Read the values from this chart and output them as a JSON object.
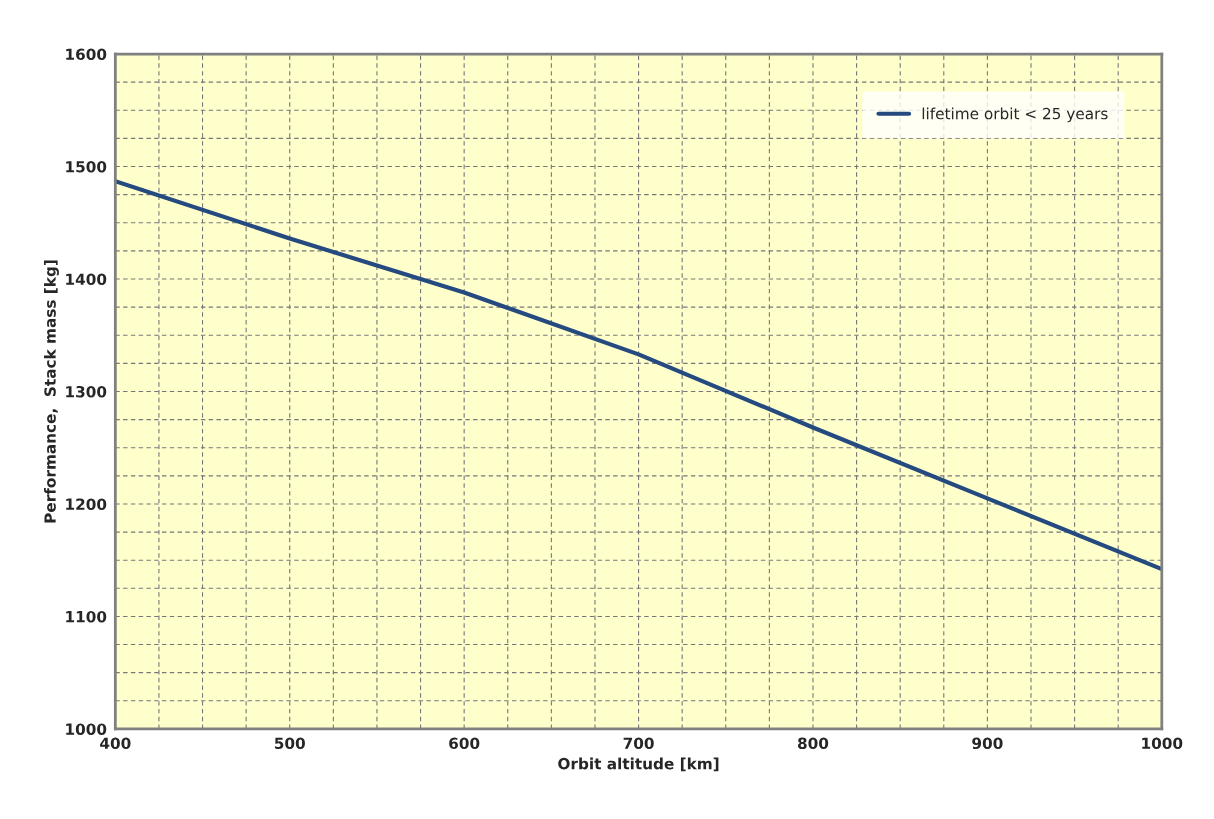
{
  "chart_data": {
    "type": "line",
    "xlabel": "Orbit altitude [km]",
    "ylabel": "Performance,  Stack mass [kg]",
    "x": [
      400,
      500,
      600,
      700,
      800,
      900,
      1000
    ],
    "series": [
      {
        "name": "lifetime orbit < 25 years",
        "color": "#254a80",
        "values": [
          1487,
          1436,
          1388,
          1333,
          1268,
          1205,
          1142
        ]
      }
    ],
    "xlim": [
      400,
      1000
    ],
    "ylim": [
      1000,
      1600
    ],
    "xticks": [
      400,
      {
        "value": 425,
        "label": null
      },
      {
        "value": 450,
        "label": null
      },
      {
        "value": 475,
        "label": null
      },
      500,
      {
        "value": 525,
        "label": null
      },
      {
        "value": 550,
        "label": null
      },
      {
        "value": 575,
        "label": null
      },
      600,
      {
        "value": 625,
        "label": null
      },
      {
        "value": 650,
        "label": null
      },
      {
        "value": 675,
        "label": null
      },
      700,
      {
        "value": 725,
        "label": null
      },
      {
        "value": 750,
        "label": null
      },
      {
        "value": 775,
        "label": null
      },
      800,
      {
        "value": 825,
        "label": null
      },
      {
        "value": 850,
        "label": null
      },
      {
        "value": 875,
        "label": null
      },
      900,
      {
        "value": 925,
        "label": null
      },
      {
        "value": 950,
        "label": null
      },
      {
        "value": 975,
        "label": null
      },
      1000
    ],
    "yticks": [
      1000,
      {
        "value": 1025,
        "label": null
      },
      {
        "value": 1050,
        "label": null
      },
      {
        "value": 1075,
        "label": null
      },
      1100,
      {
        "value": 1125,
        "label": null
      },
      {
        "value": 1150,
        "label": null
      },
      {
        "value": 1175,
        "label": null
      },
      1200,
      {
        "value": 1225,
        "label": null
      },
      {
        "value": 1250,
        "label": null
      },
      {
        "value": 1275,
        "label": null
      },
      1300,
      {
        "value": 1325,
        "label": null
      },
      {
        "value": 1350,
        "label": null
      },
      {
        "value": 1375,
        "label": null
      },
      1400,
      {
        "value": 1425,
        "label": null
      },
      {
        "value": 1450,
        "label": null
      },
      {
        "value": 1475,
        "label": null
      },
      1500,
      {
        "value": 1525,
        "label": null
      },
      {
        "value": 1550,
        "label": null
      },
      {
        "value": 1575,
        "label": null
      },
      1600
    ],
    "grid": true,
    "legend": "top right",
    "line_style": "solid",
    "marker": "none"
  }
}
